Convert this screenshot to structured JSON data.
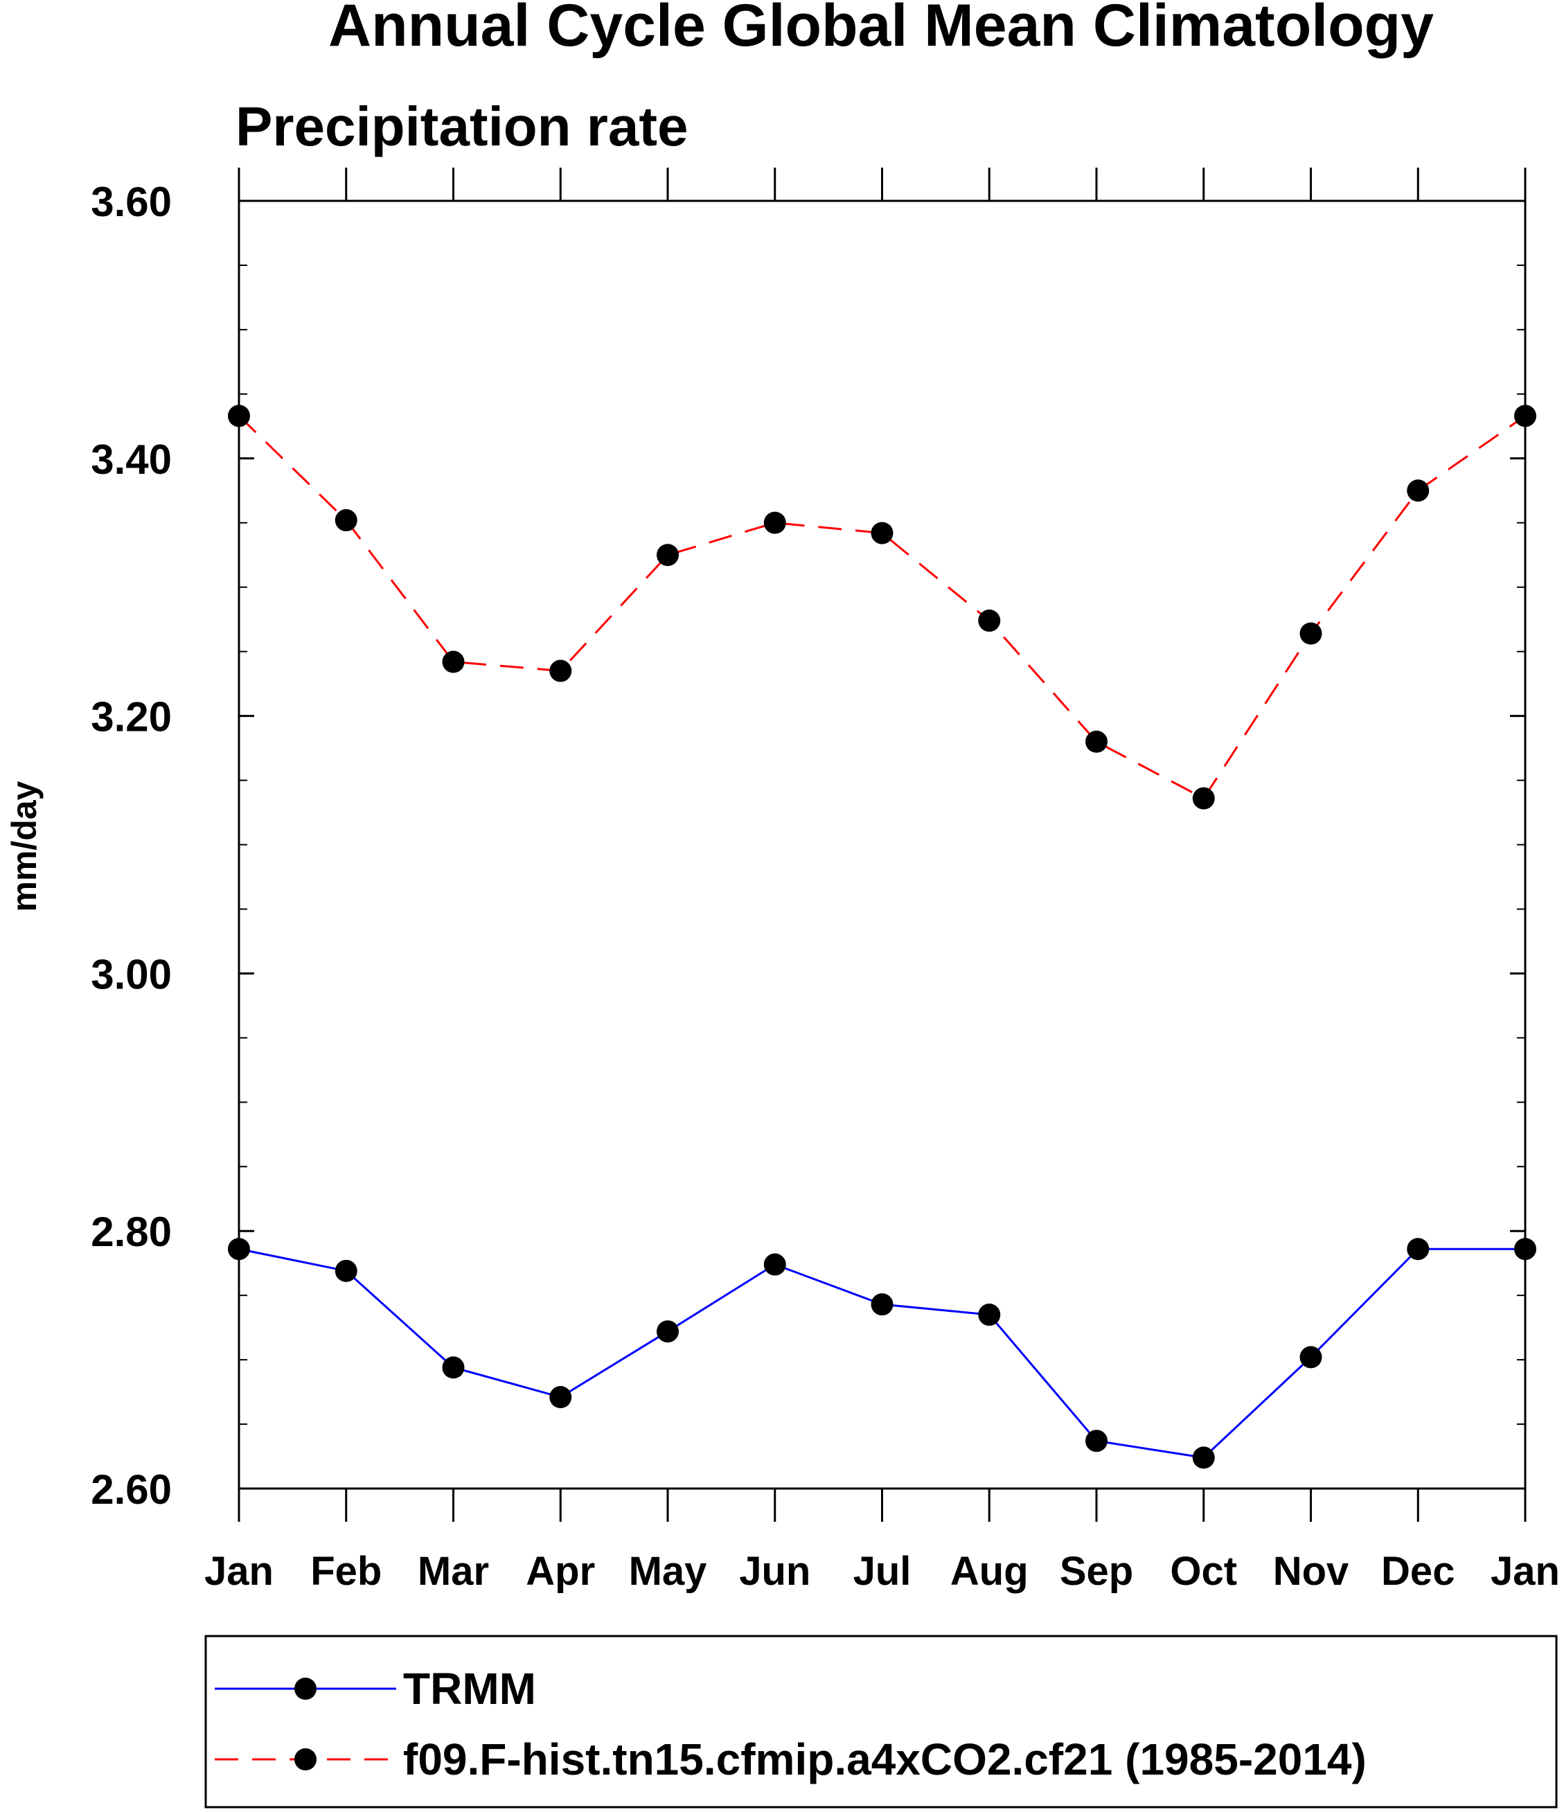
{
  "chart_data": {
    "type": "line",
    "title": "Annual Cycle Global Mean Climatology",
    "subtitle": "Precipitation rate",
    "xlabel": "",
    "ylabel": "mm/day",
    "categories": [
      "Jan",
      "Feb",
      "Mar",
      "Apr",
      "May",
      "Jun",
      "Jul",
      "Aug",
      "Sep",
      "Oct",
      "Nov",
      "Dec",
      "Jan"
    ],
    "ylim": [
      2.6,
      3.6
    ],
    "yticks": [
      "2.60",
      "2.80",
      "3.00",
      "3.20",
      "3.40",
      "3.60"
    ],
    "grid": false,
    "legend_position": "bottom",
    "series": [
      {
        "name": "TRMM",
        "color": "#0000ff",
        "dashed": false,
        "values": [
          2.786,
          2.769,
          2.694,
          2.671,
          2.722,
          2.774,
          2.743,
          2.735,
          2.637,
          2.624,
          2.702,
          2.786,
          2.786
        ]
      },
      {
        "name": "f09.F-hist.tn15.cfmip.a4xCO2.cf21 (1985-2014)",
        "color": "#ff0000",
        "dashed": true,
        "values": [
          3.433,
          3.352,
          3.242,
          3.235,
          3.325,
          3.35,
          3.342,
          3.274,
          3.18,
          3.136,
          3.264,
          3.375,
          3.433
        ]
      }
    ]
  }
}
